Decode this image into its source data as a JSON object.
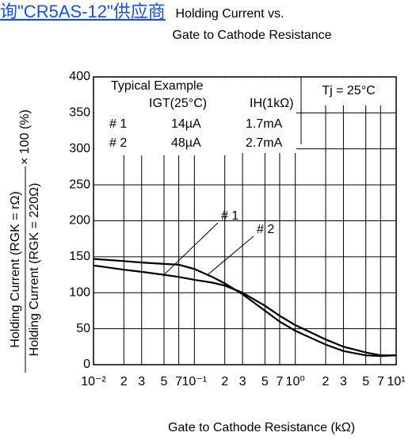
{
  "watermark": "询\"CR5AS-12\"供应商",
  "chart_data": {
    "type": "line",
    "title": [
      "Holding Current vs.",
      "Gate to Cathode Resistance"
    ],
    "x_label": "Gate to Cathode Resistance  (kΩ)",
    "y_label": [
      "Holding Current (RGK = rΩ)",
      "Holding Current (RGK = 220Ω)",
      "× 100 (%)"
    ],
    "x": [
      0.01,
      0.02,
      0.03,
      0.05,
      0.07,
      0.1,
      0.15,
      0.2,
      0.3,
      0.5,
      0.7,
      1,
      2,
      3,
      5,
      7,
      10
    ],
    "series": [
      {
        "name": "# 1",
        "color": "#000000",
        "values": [
          138,
          132,
          129,
          125,
          122,
          118,
          114,
          110,
          100,
          82,
          68,
          55,
          35,
          25,
          17,
          13,
          13
        ]
      },
      {
        "name": "# 2",
        "color": "#000000",
        "values": [
          147,
          144,
          142,
          140,
          139,
          133,
          122,
          113,
          98,
          75,
          60,
          47,
          28,
          19,
          13,
          12,
          13
        ]
      }
    ],
    "xlim": [
      0.01,
      10
    ],
    "xlog": true,
    "xticks": [
      {
        "value": 0.01,
        "label": "10⁻²"
      },
      {
        "value": 0.02,
        "label": "2"
      },
      {
        "value": 0.03,
        "label": "3"
      },
      {
        "value": 0.05,
        "label": "5"
      },
      {
        "value": 0.07,
        "label": "7"
      },
      {
        "value": 0.1,
        "label": "10⁻¹"
      },
      {
        "value": 0.2,
        "label": "2"
      },
      {
        "value": 0.3,
        "label": "3"
      },
      {
        "value": 0.5,
        "label": "5"
      },
      {
        "value": 0.7,
        "label": "7"
      },
      {
        "value": 1,
        "label": "10⁰"
      },
      {
        "value": 2,
        "label": "2"
      },
      {
        "value": 3,
        "label": "3"
      },
      {
        "value": 5,
        "label": "5"
      },
      {
        "value": 7,
        "label": "7"
      },
      {
        "value": 10,
        "label": "10¹"
      }
    ],
    "ylim": [
      0,
      400
    ],
    "yticks": [
      0,
      50,
      100,
      150,
      200,
      250,
      300,
      350,
      400
    ],
    "grid": true,
    "legend_table": {
      "title": "Typical Example",
      "header": [
        "IGT(25°C)",
        "IH(1kΩ)"
      ],
      "rows": [
        [
          "# 1",
          "14µA",
          "1.7mA"
        ],
        [
          "# 2",
          "48µA",
          "2.7mA"
        ]
      ]
    },
    "condition": "Tj = 25°C"
  }
}
